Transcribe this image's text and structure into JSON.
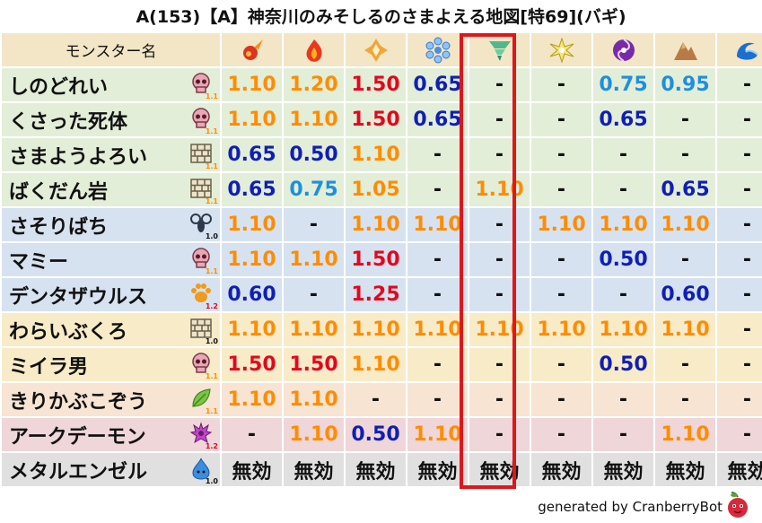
{
  "title": "A(153)【A】神奈川のみそしるのさまよえる地図[特69](バギ)",
  "header": {
    "name_col": "モンスター名",
    "elements": [
      "fire-icon",
      "flame-icon",
      "earth-icon",
      "ice-icon",
      "wind-icon",
      "light-icon",
      "dark-icon",
      "sand-icon",
      "water-icon"
    ]
  },
  "colors": {
    "header_bg": "#f3e6c6",
    "row_green": "#e3eed8",
    "row_blue": "#d6e2f0",
    "row_yellow": "#f8ebc8",
    "row_peach": "#f7e4d2",
    "row_pink": "#efd6d8",
    "row_gray": "#e0e0e0",
    "v_orange": "#ff8c00",
    "v_red": "#e3071d",
    "v_navy": "#0f1fb5",
    "v_blue": "#1e8fe0",
    "v_black": "#111111",
    "highlight": "#e0161b"
  },
  "rows": [
    {
      "name": "しのどれい",
      "type": "skull-icon",
      "level": "1.1",
      "bg": "row_green",
      "cells": [
        [
          "1.10",
          "v_orange"
        ],
        [
          "1.20",
          "v_orange"
        ],
        [
          "1.50",
          "v_red"
        ],
        [
          "0.65",
          "v_navy"
        ],
        [
          "-",
          "v_black"
        ],
        [
          "-",
          "v_black"
        ],
        [
          "0.75",
          "v_blue"
        ],
        [
          "0.95",
          "v_blue"
        ],
        [
          "-",
          "v_black"
        ]
      ]
    },
    {
      "name": "くさった死体",
      "type": "skull-icon",
      "level": "1.1",
      "bg": "row_green",
      "cells": [
        [
          "1.10",
          "v_orange"
        ],
        [
          "1.10",
          "v_orange"
        ],
        [
          "1.50",
          "v_red"
        ],
        [
          "0.65",
          "v_navy"
        ],
        [
          "-",
          "v_black"
        ],
        [
          "-",
          "v_black"
        ],
        [
          "0.65",
          "v_navy"
        ],
        [
          "-",
          "v_black"
        ],
        [
          "-",
          "v_black"
        ]
      ]
    },
    {
      "name": "さまようよろい",
      "type": "brick-icon",
      "level": "1.1",
      "bg": "row_green",
      "cells": [
        [
          "0.65",
          "v_navy"
        ],
        [
          "0.50",
          "v_navy"
        ],
        [
          "1.10",
          "v_orange"
        ],
        [
          "-",
          "v_black"
        ],
        [
          "-",
          "v_black"
        ],
        [
          "-",
          "v_black"
        ],
        [
          "-",
          "v_black"
        ],
        [
          "-",
          "v_black"
        ],
        [
          "-",
          "v_black"
        ]
      ]
    },
    {
      "name": "ばくだん岩",
      "type": "brick-icon",
      "level": "1.1",
      "bg": "row_green",
      "cells": [
        [
          "0.65",
          "v_navy"
        ],
        [
          "0.75",
          "v_blue"
        ],
        [
          "1.05",
          "v_orange"
        ],
        [
          "-",
          "v_black"
        ],
        [
          "1.10",
          "v_orange"
        ],
        [
          "-",
          "v_black"
        ],
        [
          "-",
          "v_black"
        ],
        [
          "0.65",
          "v_navy"
        ],
        [
          "-",
          "v_black"
        ]
      ]
    },
    {
      "name": "さそりばち",
      "type": "insect-icon",
      "level": "1.0",
      "bg": "row_blue",
      "cells": [
        [
          "1.10",
          "v_orange"
        ],
        [
          "-",
          "v_black"
        ],
        [
          "1.10",
          "v_orange"
        ],
        [
          "1.10",
          "v_orange"
        ],
        [
          "-",
          "v_black"
        ],
        [
          "1.10",
          "v_orange"
        ],
        [
          "1.10",
          "v_orange"
        ],
        [
          "1.10",
          "v_orange"
        ],
        [
          "-",
          "v_black"
        ]
      ]
    },
    {
      "name": "マミー",
      "type": "skull-icon",
      "level": "1.1",
      "bg": "row_blue",
      "cells": [
        [
          "1.10",
          "v_orange"
        ],
        [
          "1.10",
          "v_orange"
        ],
        [
          "1.50",
          "v_red"
        ],
        [
          "-",
          "v_black"
        ],
        [
          "-",
          "v_black"
        ],
        [
          "-",
          "v_black"
        ],
        [
          "0.50",
          "v_navy"
        ],
        [
          "-",
          "v_black"
        ],
        [
          "-",
          "v_black"
        ]
      ]
    },
    {
      "name": "デンタザウルス",
      "type": "paw-icon",
      "level": "1.2",
      "bg": "row_blue",
      "cells": [
        [
          "0.60",
          "v_navy"
        ],
        [
          "-",
          "v_black"
        ],
        [
          "1.25",
          "v_red"
        ],
        [
          "-",
          "v_black"
        ],
        [
          "-",
          "v_black"
        ],
        [
          "-",
          "v_black"
        ],
        [
          "-",
          "v_black"
        ],
        [
          "0.60",
          "v_navy"
        ],
        [
          "-",
          "v_black"
        ]
      ]
    },
    {
      "name": "わらいぶくろ",
      "type": "brick-icon",
      "level": "1.0",
      "bg": "row_yellow",
      "cells": [
        [
          "1.10",
          "v_orange"
        ],
        [
          "1.10",
          "v_orange"
        ],
        [
          "1.10",
          "v_orange"
        ],
        [
          "1.10",
          "v_orange"
        ],
        [
          "1.10",
          "v_orange"
        ],
        [
          "1.10",
          "v_orange"
        ],
        [
          "1.10",
          "v_orange"
        ],
        [
          "1.10",
          "v_orange"
        ],
        [
          "-",
          "v_black"
        ]
      ]
    },
    {
      "name": "ミイラ男",
      "type": "skull-icon",
      "level": "1.1",
      "bg": "row_yellow",
      "cells": [
        [
          "1.50",
          "v_red"
        ],
        [
          "1.50",
          "v_red"
        ],
        [
          "1.10",
          "v_orange"
        ],
        [
          "-",
          "v_black"
        ],
        [
          "-",
          "v_black"
        ],
        [
          "-",
          "v_black"
        ],
        [
          "0.50",
          "v_navy"
        ],
        [
          "-",
          "v_black"
        ],
        [
          "-",
          "v_black"
        ]
      ]
    },
    {
      "name": "きりかぶこぞう",
      "type": "leaf-icon",
      "level": "1.1",
      "bg": "row_peach",
      "cells": [
        [
          "1.10",
          "v_orange"
        ],
        [
          "1.10",
          "v_orange"
        ],
        [
          "-",
          "v_black"
        ],
        [
          "-",
          "v_black"
        ],
        [
          "-",
          "v_black"
        ],
        [
          "-",
          "v_black"
        ],
        [
          "-",
          "v_black"
        ],
        [
          "-",
          "v_black"
        ],
        [
          "-",
          "v_black"
        ]
      ]
    },
    {
      "name": "アークデーモン",
      "type": "demon-icon",
      "level": "1.2",
      "bg": "row_pink",
      "cells": [
        [
          "-",
          "v_black"
        ],
        [
          "1.10",
          "v_orange"
        ],
        [
          "0.50",
          "v_navy"
        ],
        [
          "1.10",
          "v_orange"
        ],
        [
          "-",
          "v_black"
        ],
        [
          "-",
          "v_black"
        ],
        [
          "-",
          "v_black"
        ],
        [
          "1.10",
          "v_orange"
        ],
        [
          "-",
          "v_black"
        ]
      ]
    },
    {
      "name": "メタルエンゼル",
      "type": "slime-icon",
      "level": "1.0",
      "bg": "row_gray",
      "cells": [
        [
          "無効",
          "v_black"
        ],
        [
          "無効",
          "v_black"
        ],
        [
          "無効",
          "v_black"
        ],
        [
          "無効",
          "v_black"
        ],
        [
          "無効",
          "v_black"
        ],
        [
          "無効",
          "v_black"
        ],
        [
          "無効",
          "v_black"
        ],
        [
          "無効",
          "v_black"
        ],
        [
          "無効",
          "v_black"
        ]
      ]
    }
  ],
  "footer": "generated by CranberryBot"
}
